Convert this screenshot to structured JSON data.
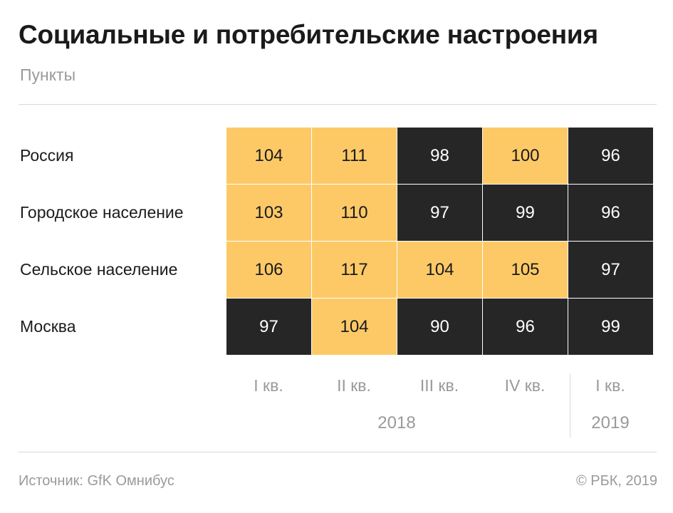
{
  "header": {
    "title": "Социальные и потребительские настроения",
    "subtitle": "Пункты"
  },
  "footer": {
    "source": "Источник: GfK Омнибус",
    "copyright": "© РБК, 2019"
  },
  "colors": {
    "above_100": "#fdc967",
    "below_100": "#262626"
  },
  "chart_data": {
    "type": "heatmap",
    "title": "Социальные и потребительские настроения",
    "subtitle": "Пункты",
    "rows": [
      "Россия",
      "Городское население",
      "Сельское население",
      "Москва"
    ],
    "columns": [
      "I кв.",
      "II кв.",
      "III кв.",
      "IV кв.",
      "I кв."
    ],
    "column_groups": [
      {
        "label": "2018",
        "columns": [
          0,
          1,
          2,
          3
        ]
      },
      {
        "label": "2019",
        "columns": [
          4
        ]
      }
    ],
    "values": [
      [
        104,
        111,
        98,
        100,
        96
      ],
      [
        103,
        110,
        97,
        99,
        96
      ],
      [
        106,
        117,
        104,
        105,
        97
      ],
      [
        97,
        104,
        90,
        96,
        99
      ]
    ],
    "color_rule": "yellow when value >= 100, black when value < 100"
  }
}
